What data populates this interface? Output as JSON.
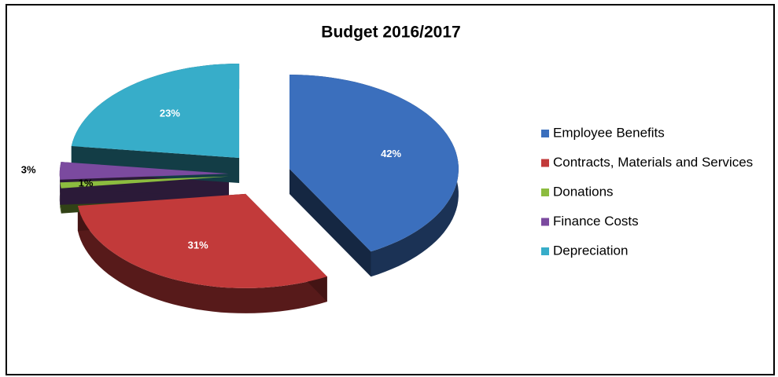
{
  "chart_data": {
    "type": "pie",
    "title": "Budget 2016/2017",
    "categories": [
      "Employee Benefits",
      "Contracts, Materials and Services",
      "Donations",
      "Finance Costs",
      "Depreciation"
    ],
    "values": [
      42,
      31,
      1,
      3,
      23
    ],
    "value_labels": [
      "42%",
      "31%",
      "1%",
      "3%",
      "23%"
    ],
    "colors": [
      "#3b6fbd",
      "#c23a3a",
      "#8cbc3f",
      "#7b4a9f",
      "#37adc9"
    ],
    "legend": "right"
  }
}
